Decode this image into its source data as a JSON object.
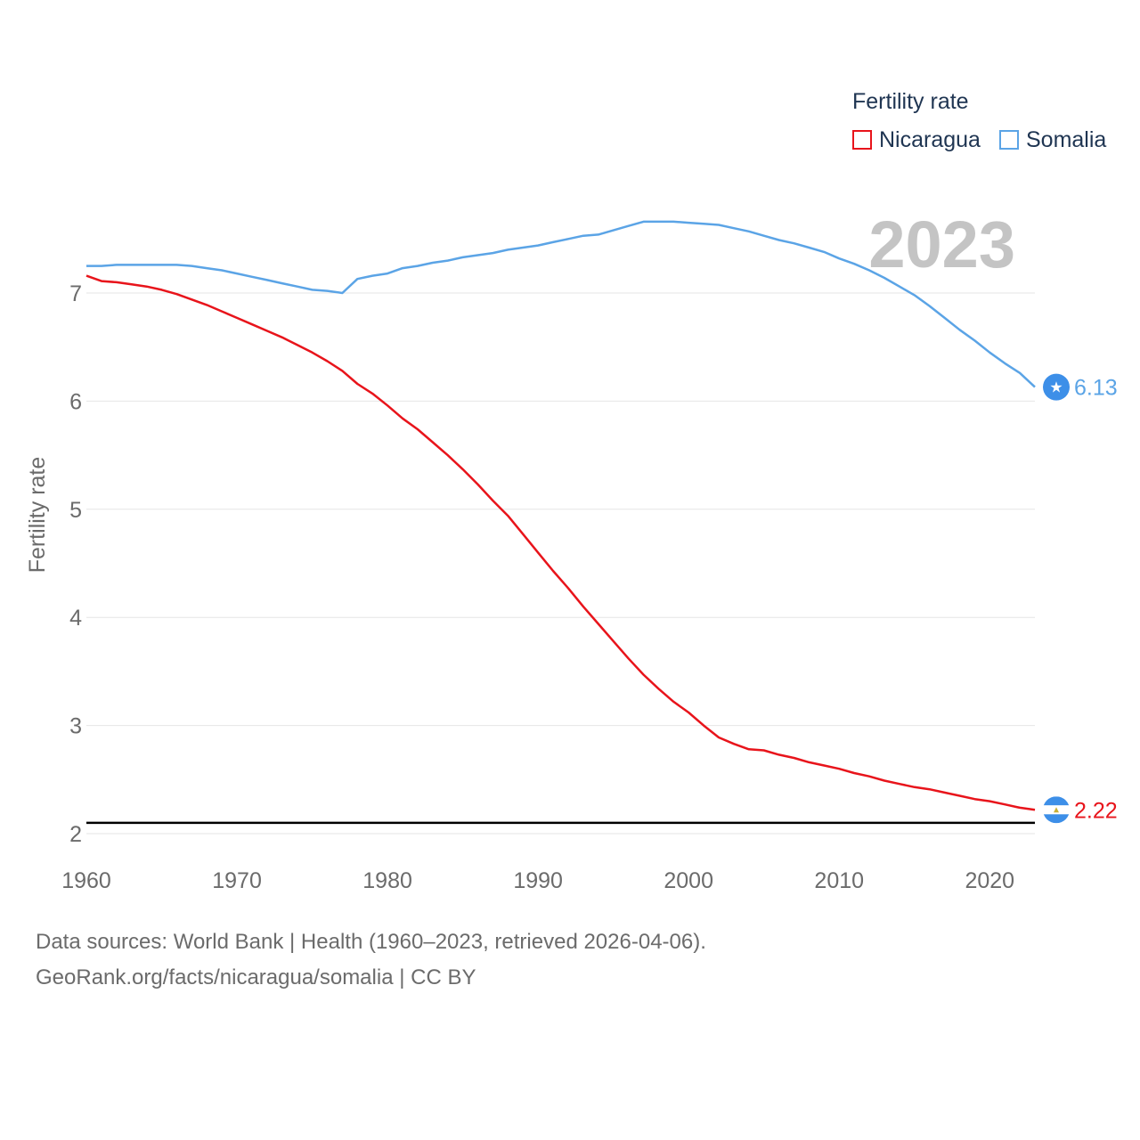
{
  "legend": {
    "title": "Fertility rate",
    "items": [
      {
        "label": "Nicaragua",
        "color": "#e8141b"
      },
      {
        "label": "Somalia",
        "color": "#5ba4e6"
      }
    ]
  },
  "year_badge": "2023",
  "footer": {
    "source": "Data sources: World Bank | Health (1960–2023, retrieved 2026-04-06).",
    "url": "GeoRank.org/facts/nicaragua/somalia | CC BY"
  },
  "chart_data": {
    "type": "line",
    "title": "",
    "xlabel": "",
    "ylabel": "Fertility rate",
    "xlim": [
      1960,
      2023
    ],
    "ylim": [
      2,
      7.5
    ],
    "x_ticks": [
      1960,
      1970,
      1980,
      1990,
      2000,
      2010,
      2020
    ],
    "y_ticks": [
      2,
      3,
      4,
      5,
      6,
      7
    ],
    "reference_line": {
      "y": 2.1,
      "color": "#000000"
    },
    "series": [
      {
        "name": "Somalia",
        "color": "#5ba4e6",
        "end_label": "6.13",
        "flag": "somalia-flag",
        "x": [
          1960,
          1961,
          1962,
          1963,
          1964,
          1965,
          1966,
          1967,
          1968,
          1969,
          1970,
          1971,
          1972,
          1973,
          1974,
          1975,
          1976,
          1977,
          1978,
          1979,
          1980,
          1981,
          1982,
          1983,
          1984,
          1985,
          1986,
          1987,
          1988,
          1989,
          1990,
          1991,
          1992,
          1993,
          1994,
          1995,
          1996,
          1997,
          1998,
          1999,
          2000,
          2001,
          2002,
          2003,
          2004,
          2005,
          2006,
          2007,
          2008,
          2009,
          2010,
          2011,
          2012,
          2013,
          2014,
          2015,
          2016,
          2017,
          2018,
          2019,
          2020,
          2021,
          2022,
          2023
        ],
        "values": [
          7.25,
          7.25,
          7.26,
          7.26,
          7.26,
          7.26,
          7.26,
          7.25,
          7.23,
          7.21,
          7.18,
          7.15,
          7.12,
          7.09,
          7.06,
          7.03,
          7.02,
          7.0,
          7.13,
          7.16,
          7.18,
          7.23,
          7.25,
          7.28,
          7.3,
          7.33,
          7.35,
          7.37,
          7.4,
          7.42,
          7.44,
          7.47,
          7.5,
          7.53,
          7.54,
          7.58,
          7.62,
          7.66,
          7.66,
          7.66,
          7.65,
          7.64,
          7.63,
          7.6,
          7.57,
          7.53,
          7.49,
          7.46,
          7.42,
          7.38,
          7.32,
          7.27,
          7.21,
          7.14,
          7.06,
          6.98,
          6.88,
          6.77,
          6.66,
          6.56,
          6.45,
          6.35,
          6.26,
          6.13
        ]
      },
      {
        "name": "Nicaragua",
        "color": "#e8141b",
        "end_label": "2.22",
        "flag": "nicaragua-flag",
        "x": [
          1960,
          1961,
          1962,
          1963,
          1964,
          1965,
          1966,
          1967,
          1968,
          1969,
          1970,
          1971,
          1972,
          1973,
          1974,
          1975,
          1976,
          1977,
          1978,
          1979,
          1980,
          1981,
          1982,
          1983,
          1984,
          1985,
          1986,
          1987,
          1988,
          1989,
          1990,
          1991,
          1992,
          1993,
          1994,
          1995,
          1996,
          1997,
          1998,
          1999,
          2000,
          2001,
          2002,
          2003,
          2004,
          2005,
          2006,
          2007,
          2008,
          2009,
          2010,
          2011,
          2012,
          2013,
          2014,
          2015,
          2016,
          2017,
          2018,
          2019,
          2020,
          2021,
          2022,
          2023
        ],
        "values": [
          7.16,
          7.11,
          7.1,
          7.08,
          7.06,
          7.03,
          6.99,
          6.94,
          6.89,
          6.83,
          6.77,
          6.71,
          6.65,
          6.59,
          6.52,
          6.45,
          6.37,
          6.28,
          6.16,
          6.07,
          5.96,
          5.84,
          5.74,
          5.62,
          5.5,
          5.37,
          5.23,
          5.08,
          4.94,
          4.77,
          4.6,
          4.43,
          4.27,
          4.1,
          3.94,
          3.78,
          3.62,
          3.47,
          3.34,
          3.22,
          3.12,
          3.0,
          2.89,
          2.83,
          2.78,
          2.77,
          2.73,
          2.7,
          2.66,
          2.63,
          2.6,
          2.56,
          2.53,
          2.49,
          2.46,
          2.43,
          2.41,
          2.38,
          2.35,
          2.32,
          2.3,
          2.27,
          2.24,
          2.22
        ]
      }
    ]
  }
}
